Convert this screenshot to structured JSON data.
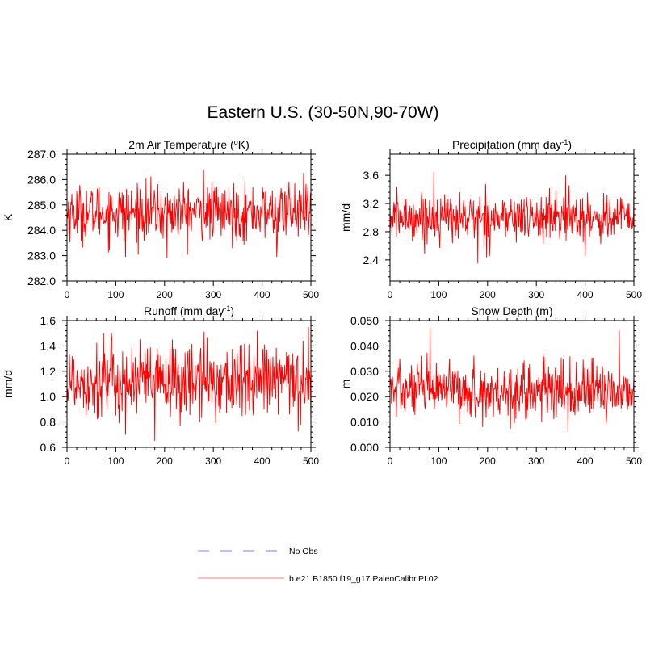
{
  "title": "Eastern U.S. (30-50N,90-70W)",
  "colors": {
    "series": "#ff0000",
    "obs": "#9999ff",
    "axis": "#000000"
  },
  "chart_data": [
    {
      "type": "line",
      "title_main": "2m Air Temperature (",
      "title_sup": "o",
      "title_post": "K)",
      "ylabel": "K",
      "xlim": [
        0,
        500
      ],
      "ylim": [
        282,
        287
      ],
      "xticks": [
        0,
        100,
        200,
        300,
        400,
        500
      ],
      "xtick_labels": [
        "0",
        "100",
        "200",
        "300",
        "400",
        "500"
      ],
      "yticks": [
        282,
        283,
        284,
        285,
        286,
        287
      ],
      "ytick_labels": [
        "282.0",
        "283.0",
        "284.0",
        "285.0",
        "286.0",
        "287.0"
      ],
      "series_name": "b.e21.B1850.f19_g17.PaleoCalibr.PI.02",
      "mean": 284.7,
      "spread": 0.55,
      "min": 282.9,
      "max": 286.4,
      "peaks": [
        [
          280,
          286.4
        ],
        [
          205,
          282.9
        ],
        [
          120,
          282.95
        ],
        [
          430,
          282.95
        ],
        [
          455,
          285.9
        ]
      ]
    },
    {
      "type": "line",
      "title_main": "Precipitation (mm day",
      "title_sup": "-1",
      "title_post": ")",
      "ylabel": "mm/d",
      "xlim": [
        0,
        500
      ],
      "ylim": [
        2.1,
        3.9
      ],
      "xticks": [
        0,
        100,
        200,
        300,
        400,
        500
      ],
      "xtick_labels": [
        "0",
        "100",
        "200",
        "300",
        "400",
        "500"
      ],
      "yticks": [
        2.4,
        2.8,
        3.2,
        3.6
      ],
      "ytick_labels": [
        "2.4",
        "2.8",
        "3.2",
        "3.6"
      ],
      "series_name": "b.e21.B1850.f19_g17.PaleoCalibr.PI.02",
      "mean": 3.0,
      "spread": 0.17,
      "min": 2.35,
      "max": 3.65,
      "peaks": [
        [
          90,
          3.65
        ],
        [
          180,
          2.35
        ],
        [
          360,
          3.6
        ],
        [
          500,
          3.5
        ],
        [
          400,
          2.45
        ]
      ]
    },
    {
      "type": "line",
      "title_main": "Runoff (mm day",
      "title_sup": "-1",
      "title_post": ")",
      "ylabel": "mm/d",
      "xlim": [
        0,
        500
      ],
      "ylim": [
        0.6,
        1.6
      ],
      "xticks": [
        0,
        100,
        200,
        300,
        400,
        500
      ],
      "xtick_labels": [
        "0",
        "100",
        "200",
        "300",
        "400",
        "500"
      ],
      "yticks": [
        0.6,
        0.8,
        1.0,
        1.2,
        1.4,
        1.6
      ],
      "ytick_labels": [
        "0.6",
        "0.8",
        "1.0",
        "1.2",
        "1.4",
        "1.6"
      ],
      "series_name": "b.e21.B1850.f19_g17.PaleoCalibr.PI.02",
      "mean": 1.12,
      "spread": 0.15,
      "min": 0.65,
      "max": 1.55,
      "peaks": [
        [
          180,
          0.65
        ],
        [
          495,
          1.55
        ],
        [
          390,
          1.52
        ],
        [
          120,
          0.7
        ],
        [
          75,
          1.5
        ]
      ]
    },
    {
      "type": "line",
      "title_main": "Snow Depth (m)",
      "title_sup": "",
      "title_post": "",
      "ylabel": "m",
      "xlim": [
        0,
        500
      ],
      "ylim": [
        0,
        0.05
      ],
      "xticks": [
        0,
        100,
        200,
        300,
        400,
        500
      ],
      "xtick_labels": [
        "0",
        "100",
        "200",
        "300",
        "400",
        "500"
      ],
      "yticks": [
        0,
        0.01,
        0.02,
        0.03,
        0.04,
        0.05
      ],
      "ytick_labels": [
        "0.000",
        "0.010",
        "0.020",
        "0.030",
        "0.040",
        "0.050"
      ],
      "series_name": "b.e21.B1850.f19_g17.PaleoCalibr.PI.02",
      "mean": 0.022,
      "spread": 0.0055,
      "min": 0.006,
      "max": 0.047,
      "peaks": [
        [
          82,
          0.047
        ],
        [
          470,
          0.046
        ],
        [
          365,
          0.006
        ],
        [
          190,
          0.008
        ],
        [
          20,
          0.035
        ]
      ]
    }
  ],
  "legend": {
    "items": [
      {
        "label": "No Obs",
        "style": "dashed"
      },
      {
        "label": "b.e21.B1850.f19_g17.PaleoCalibr.PI.02",
        "style": "solid"
      }
    ]
  }
}
